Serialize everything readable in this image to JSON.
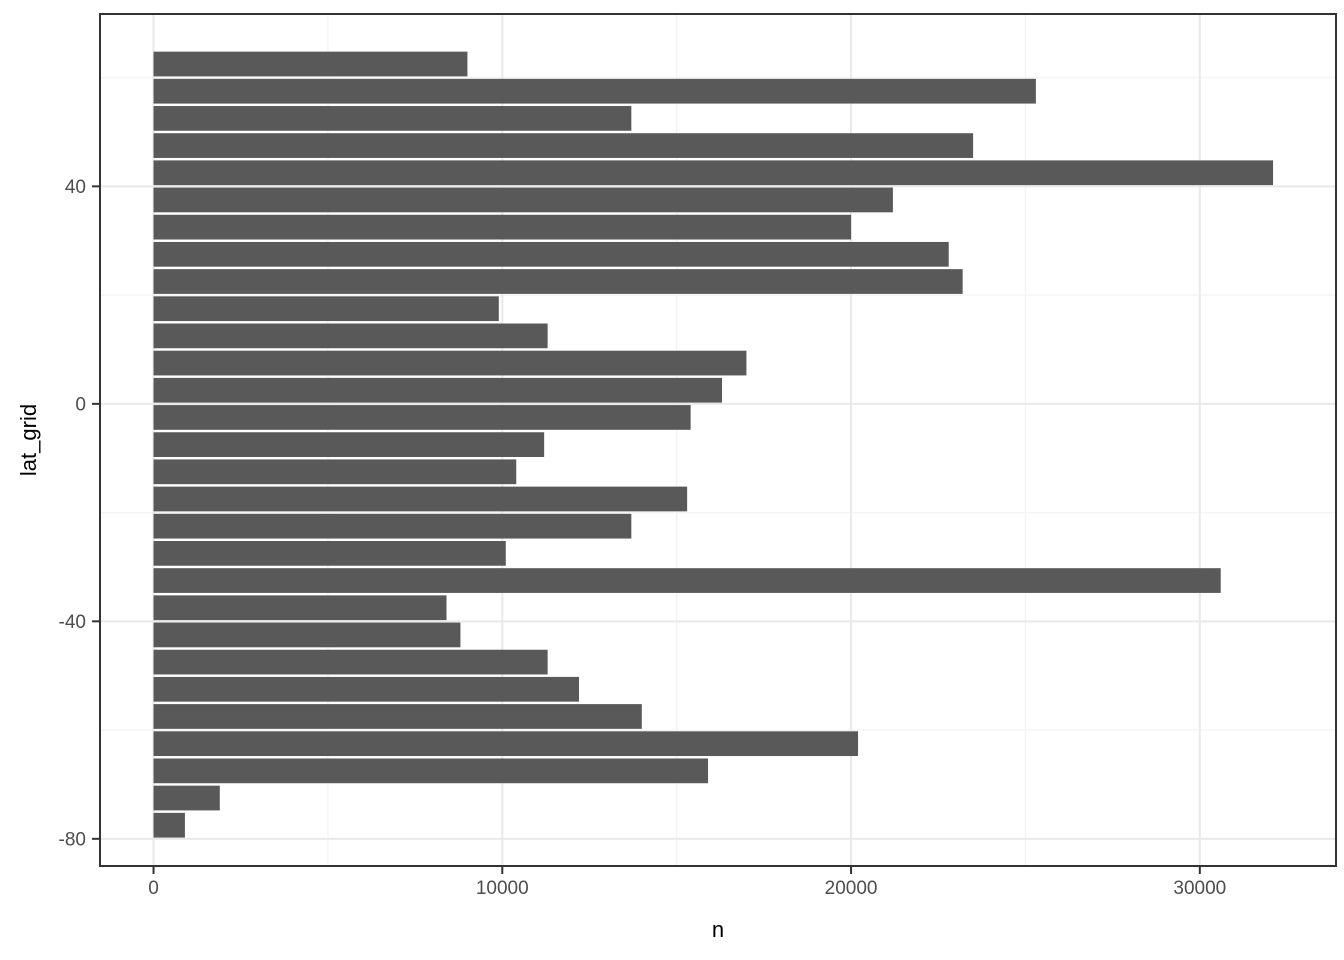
{
  "figure": {
    "background_color": "#ffffff"
  },
  "chart_data": {
    "type": "bar",
    "orientation": "horizontal",
    "title": "",
    "xlabel": "n",
    "ylabel": "lat_grid",
    "categories": [
      62.5,
      57.5,
      52.5,
      47.5,
      42.5,
      37.5,
      32.5,
      27.5,
      22.5,
      17.5,
      12.5,
      7.5,
      2.5,
      -2.5,
      -7.5,
      -12.5,
      -17.5,
      -22.5,
      -27.5,
      -32.5,
      -37.5,
      -42.5,
      -47.5,
      -52.5,
      -57.5,
      -62.5,
      -67.5,
      -72.5,
      -77.5
    ],
    "values": [
      9000,
      25300,
      13700,
      23500,
      32100,
      21200,
      20000,
      22800,
      23200,
      9900,
      11300,
      17000,
      16300,
      15400,
      11200,
      10400,
      15300,
      13700,
      10100,
      30600,
      8400,
      8800,
      11300,
      12200,
      14000,
      20200,
      15900,
      1900,
      900
    ],
    "bin_width": 5,
    "bar_rel_width": 0.91,
    "x_ticks": [
      0,
      10000,
      20000,
      30000
    ],
    "x_tick_labels": [
      "0",
      "10000",
      "20000",
      "30000"
    ],
    "x_minor_ticks": [
      5000,
      15000,
      25000
    ],
    "xlim": [
      -1535,
      33905
    ],
    "y_ticks": [
      40,
      0,
      -40,
      -80
    ],
    "y_tick_labels": [
      "40",
      "0",
      "-40",
      "-80"
    ],
    "y_minor_ticks": [
      60,
      20,
      -20,
      -60
    ],
    "ylim": [
      -85,
      71.7
    ],
    "grid": true,
    "legend": false,
    "colors": {
      "bar_fill": "#595959",
      "panel_background": "#ffffff",
      "panel_border": "#333333",
      "grid_major": "#e9e9e9",
      "grid_minor": "#f4f4f4",
      "tick_mark": "#333333",
      "tick_label": "#4d4d4d",
      "axis_title": "#000000"
    }
  }
}
